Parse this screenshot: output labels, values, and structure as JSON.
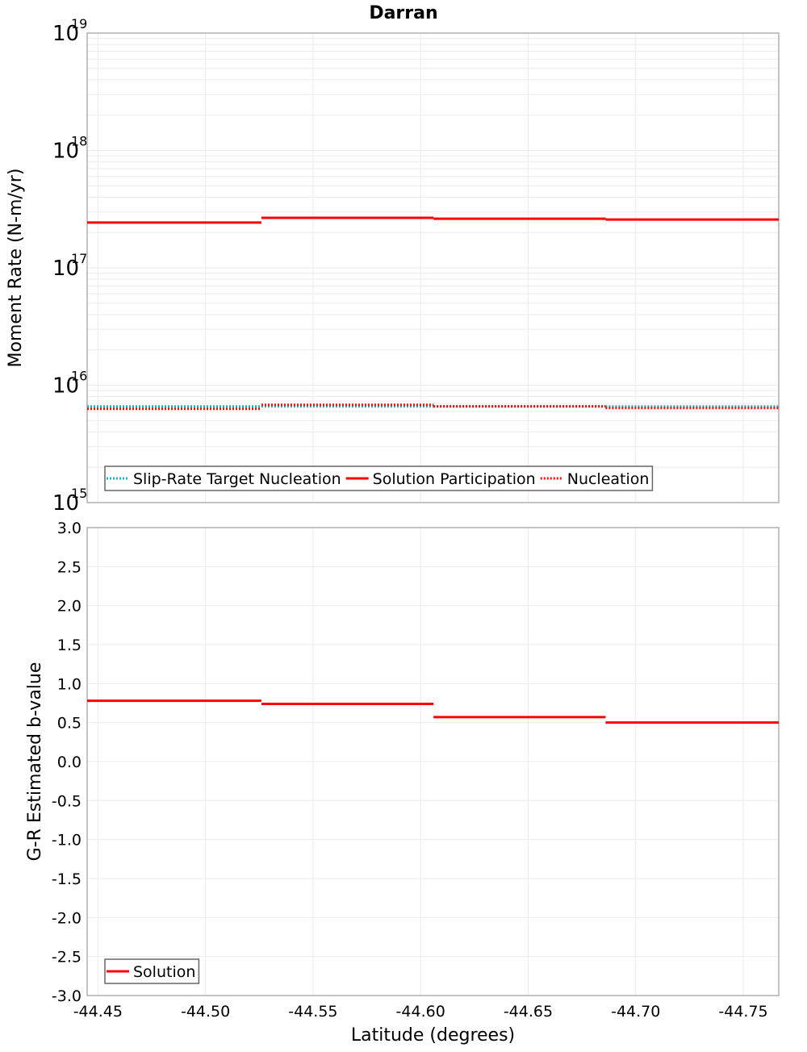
{
  "title": "Darran",
  "colors": {
    "solution": "#ff0000",
    "slip_rate_target": "#1ab3c0",
    "nucleation": "#ff0000",
    "grid": "#ebebeb",
    "frame": "#b0b0b0"
  },
  "chart_data": [
    {
      "type": "line",
      "subtype": "step",
      "title": "Darran",
      "xlabel": "",
      "ylabel": "Moment Rate (N-m/yr)",
      "yscale": "log",
      "ylim": [
        1000000000000000.0,
        1e+19
      ],
      "xlim": [
        -44.445,
        -44.7665
      ],
      "x_reversed": true,
      "y_tick_labels": [
        {
          "base": "10",
          "exp": "19",
          "value": 1e+19
        },
        {
          "base": "10",
          "exp": "18",
          "value": 1e+18
        },
        {
          "base": "10",
          "exp": "17",
          "value": 1e+17
        },
        {
          "base": "10",
          "exp": "16",
          "value": 1e+16
        },
        {
          "base": "10",
          "exp": "15",
          "value": 1000000000000000.0
        }
      ],
      "grid": true,
      "legend_position": "lower-left",
      "segments_x": [
        [
          -44.445,
          -44.526
        ],
        [
          -44.526,
          -44.606
        ],
        [
          -44.606,
          -44.686
        ],
        [
          -44.686,
          -44.7665
        ]
      ],
      "series": [
        {
          "name": "Slip-Rate Target Nucleation",
          "style": "dotted",
          "color": "#1ab3c0",
          "values": [
            6600000000000000.0,
            6600000000000000.0,
            6600000000000000.0,
            6600000000000000.0
          ]
        },
        {
          "name": "Solution Participation",
          "style": "solid",
          "color": "#ff0000",
          "values": [
            2.43e+17,
            2.67e+17,
            2.62e+17,
            2.58e+17
          ]
        },
        {
          "name": "Nucleation",
          "style": "dotted",
          "color": "#ff0000",
          "values": [
            6300000000000000.0,
            6800000000000000.0,
            6600000000000000.0,
            6400000000000000.0
          ]
        }
      ]
    },
    {
      "type": "line",
      "subtype": "step",
      "title": "",
      "xlabel": "Latitude (degrees)",
      "ylabel": "G-R Estimated b-value",
      "yscale": "linear",
      "ylim": [
        -3.0,
        3.0
      ],
      "xlim": [
        -44.445,
        -44.7665
      ],
      "x_reversed": true,
      "y_ticks": [
        "3.0",
        "2.5",
        "2.0",
        "1.5",
        "1.0",
        "0.5",
        "0.0",
        "-0.5",
        "-1.0",
        "-1.5",
        "-2.0",
        "-2.5",
        "-3.0"
      ],
      "x_ticks": [
        "-44.45",
        "-44.50",
        "-44.55",
        "-44.60",
        "-44.65",
        "-44.70",
        "-44.75"
      ],
      "grid": true,
      "legend_position": "lower-left",
      "segments_x": [
        [
          -44.445,
          -44.526
        ],
        [
          -44.526,
          -44.606
        ],
        [
          -44.606,
          -44.686
        ],
        [
          -44.686,
          -44.7665
        ]
      ],
      "series": [
        {
          "name": "Solution",
          "style": "solid",
          "color": "#ff0000",
          "values": [
            0.78,
            0.74,
            0.57,
            0.5
          ]
        }
      ]
    }
  ]
}
